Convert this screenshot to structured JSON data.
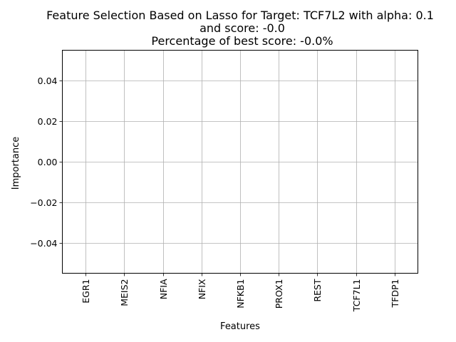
{
  "chart_data": {
    "type": "bar",
    "title_lines": [
      "Feature Selection Based on Lasso for Target: TCF7L2 with alpha: 0.1",
      "and score: -0.0",
      "Percentage of best score: -0.0%"
    ],
    "xlabel": "Features",
    "ylabel": "Importance",
    "categories": [
      "EGR1",
      "MEIS2",
      "NFIA",
      "NFIX",
      "NFKB1",
      "PROX1",
      "REST",
      "TCF7L1",
      "TFDP1"
    ],
    "values": [
      0,
      0,
      0,
      0,
      0,
      0,
      0,
      0,
      0
    ],
    "ylim": [
      -0.055,
      0.055
    ],
    "yticks": [
      -0.04,
      -0.02,
      0.0,
      0.02,
      0.04
    ],
    "ytick_labels": [
      "−0.04",
      "−0.02",
      "0.00",
      "0.02",
      "0.04"
    ],
    "grid": true,
    "colors": {
      "grid": "#b0b0b0",
      "axes": "#000000",
      "bar": "#1f77b4"
    }
  }
}
